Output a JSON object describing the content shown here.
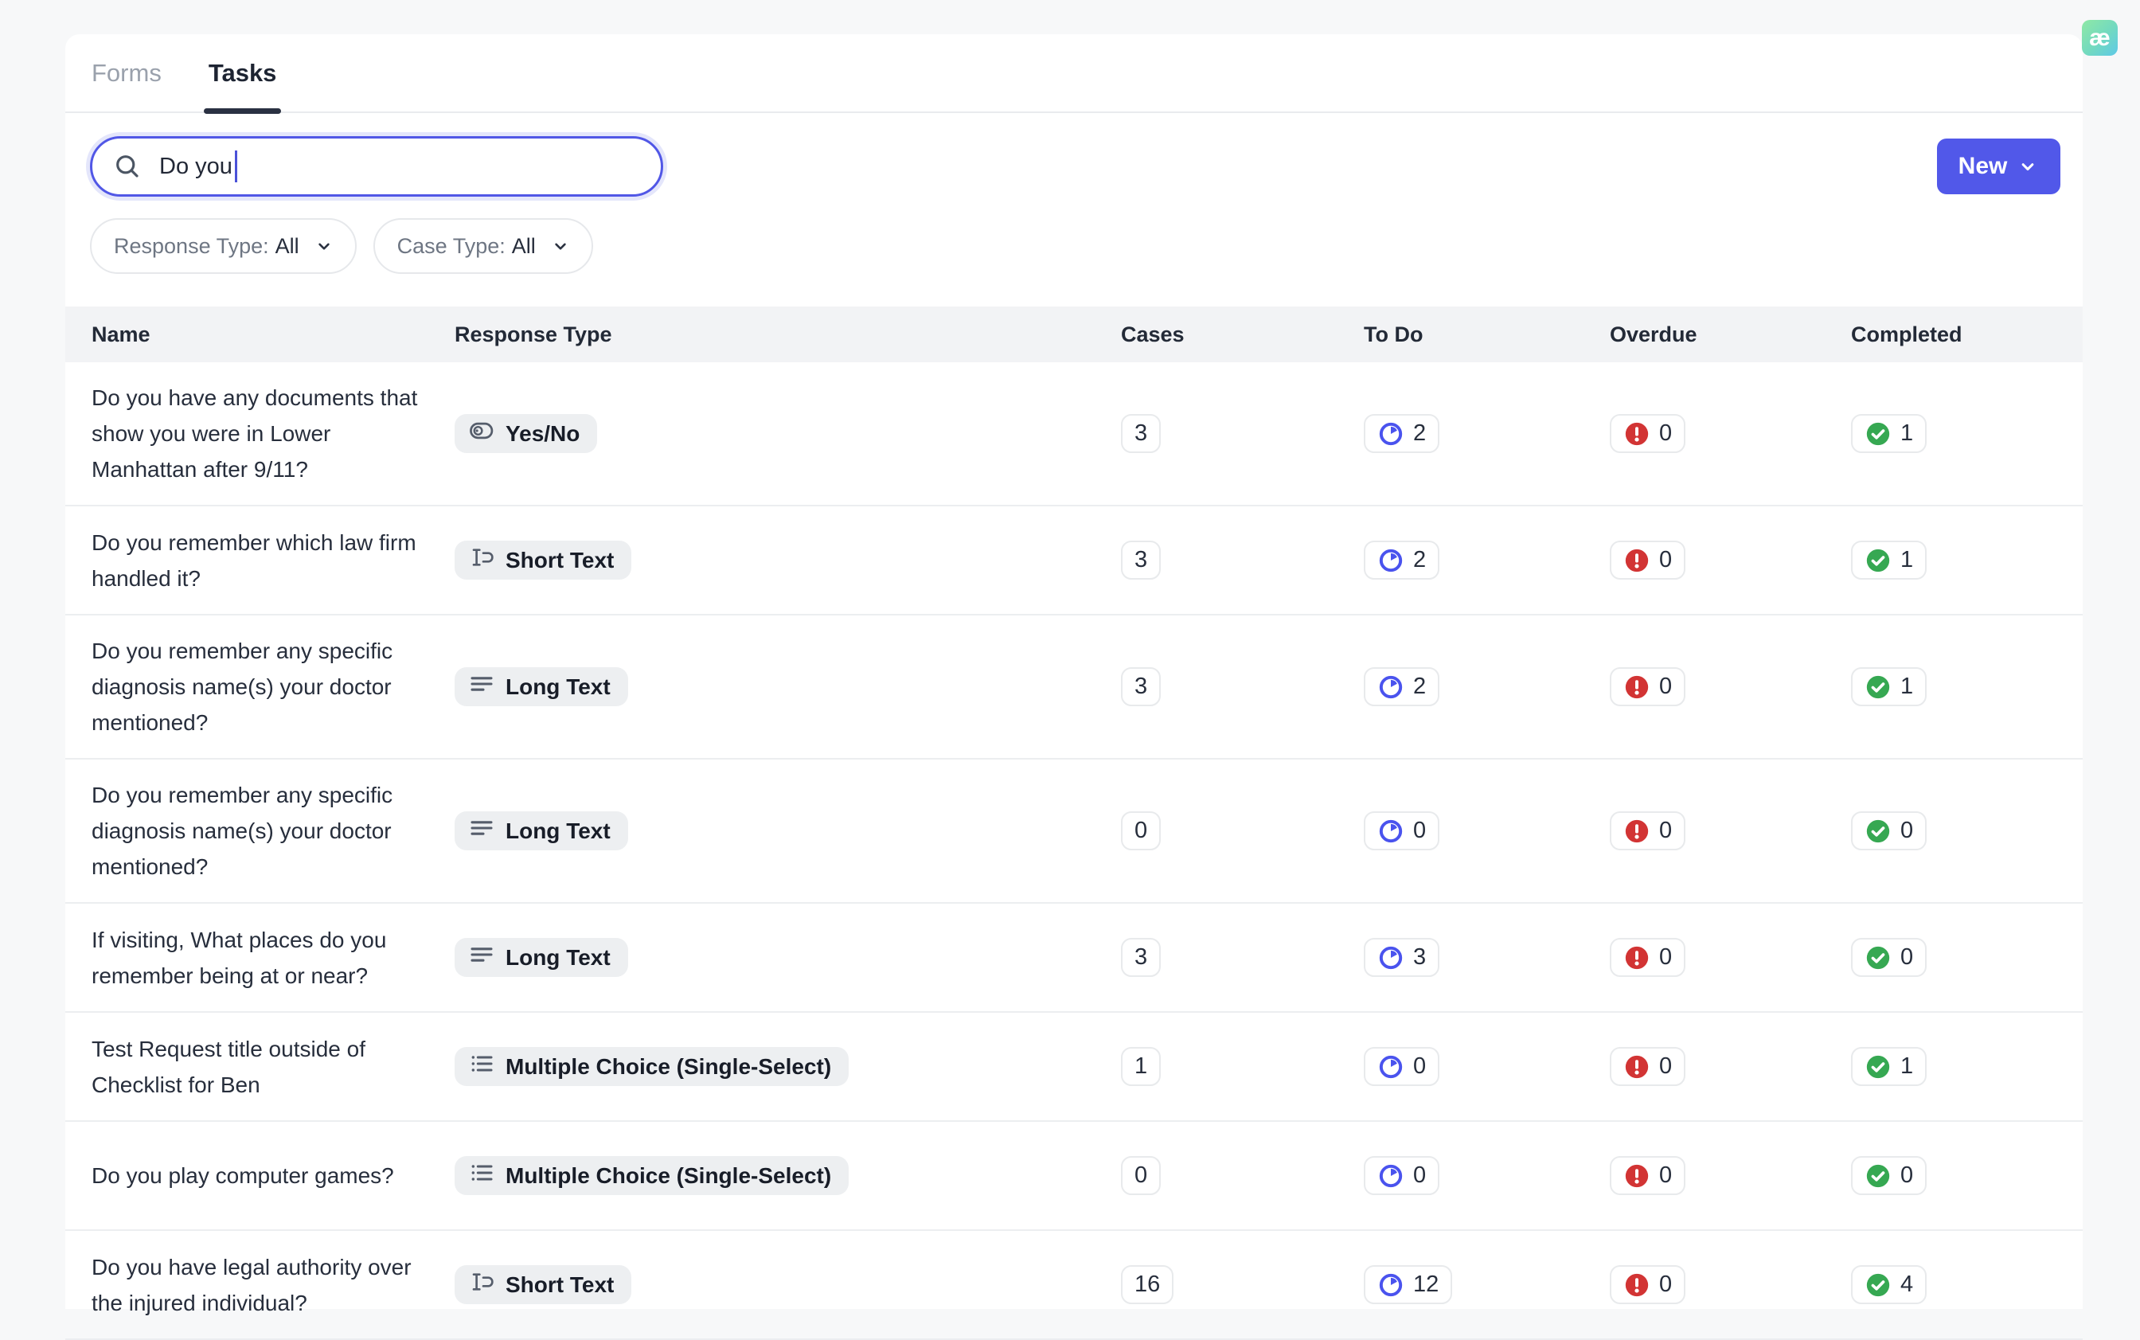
{
  "logo": {
    "text": "æ"
  },
  "tabs": [
    {
      "label": "Forms",
      "active": false
    },
    {
      "label": "Tasks",
      "active": true
    }
  ],
  "search": {
    "value": "Do you",
    "icon": "search-icon"
  },
  "new_button": {
    "label": "New",
    "icon": "chevron-down-icon"
  },
  "filters": [
    {
      "label": "Response Type:",
      "value": "All",
      "icon": "chevron-down-icon"
    },
    {
      "label": "Case Type:",
      "value": "All",
      "icon": "chevron-down-icon"
    }
  ],
  "table": {
    "columns": [
      "Name",
      "Response Type",
      "Cases",
      "To Do",
      "Overdue",
      "Completed"
    ],
    "status_icons": {
      "todo": "clock-icon",
      "overdue": "alert-circle-icon",
      "completed": "check-circle-icon"
    },
    "colors": {
      "todo_blue": "#4a53ee",
      "overdue_red": "#d23434",
      "completed_green": "#36a852",
      "accent": "#5158e9"
    },
    "rows": [
      {
        "name": "Do you have any documents that show you were in Lower Manhattan after 9/11?",
        "response_type": "Yes/No",
        "icon": "toggle-icon",
        "cases": "3",
        "todo": "2",
        "overdue": "0",
        "completed": "1"
      },
      {
        "name": "Do you remember which law firm handled it?",
        "response_type": "Short Text",
        "icon": "short-text-icon",
        "cases": "3",
        "todo": "2",
        "overdue": "0",
        "completed": "1"
      },
      {
        "name": "Do you remember any specific diagnosis name(s) your doctor mentioned?",
        "response_type": "Long Text",
        "icon": "long-text-icon",
        "cases": "3",
        "todo": "2",
        "overdue": "0",
        "completed": "1"
      },
      {
        "name": "Do you remember any specific diagnosis name(s) your doctor mentioned?",
        "response_type": "Long Text",
        "icon": "long-text-icon",
        "cases": "0",
        "todo": "0",
        "overdue": "0",
        "completed": "0"
      },
      {
        "name": "If visiting, What places do you remember being at or near?",
        "response_type": "Long Text",
        "icon": "long-text-icon",
        "cases": "3",
        "todo": "3",
        "overdue": "0",
        "completed": "0"
      },
      {
        "name": "Test Request title outside of Checklist for Ben",
        "response_type": "Multiple Choice (Single-Select)",
        "icon": "list-icon",
        "cases": "1",
        "todo": "0",
        "overdue": "0",
        "completed": "1"
      },
      {
        "name": "Do you play computer games?",
        "response_type": "Multiple Choice (Single-Select)",
        "icon": "list-icon",
        "cases": "0",
        "todo": "0",
        "overdue": "0",
        "completed": "0"
      },
      {
        "name": "Do you have legal authority over the injured individual?",
        "response_type": "Short Text",
        "icon": "short-text-icon",
        "cases": "16",
        "todo": "12",
        "overdue": "0",
        "completed": "4"
      }
    ]
  }
}
